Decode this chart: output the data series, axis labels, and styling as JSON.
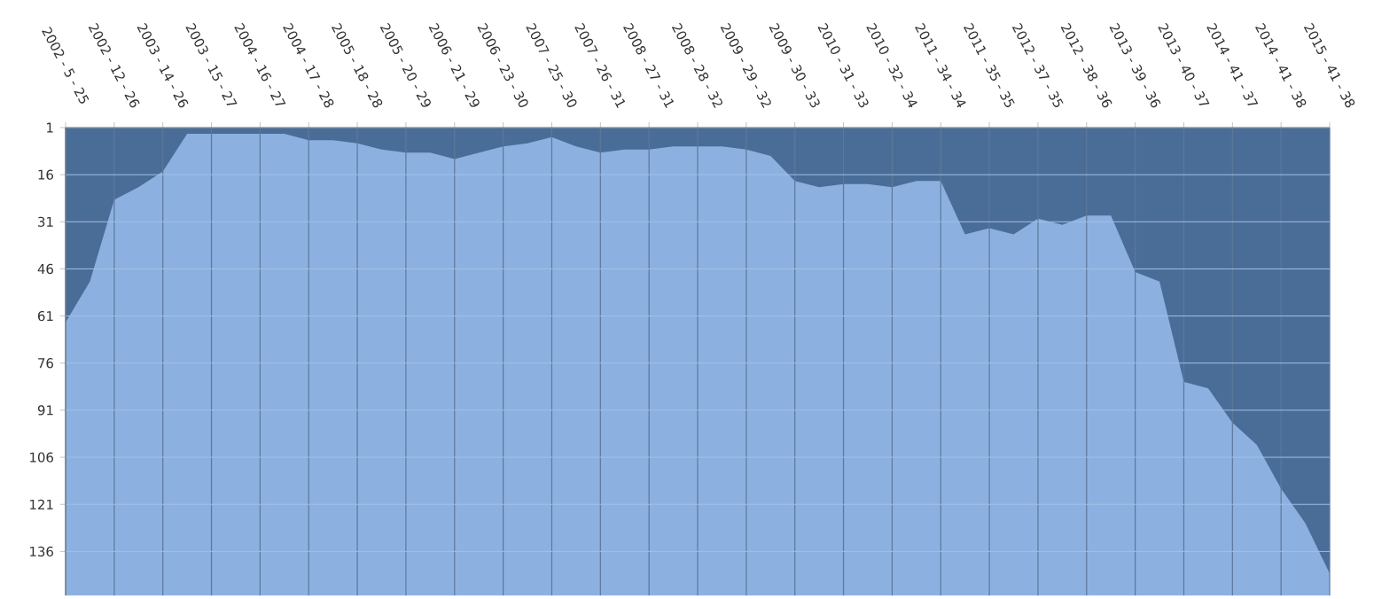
{
  "chart_data": {
    "type": "area",
    "categories": [
      "2002 - 5 - 25",
      null,
      "2002 - 12 - 26",
      null,
      "2003 - 14 - 26",
      null,
      "2003 - 15 - 27",
      null,
      "2004 - 16 - 27",
      null,
      "2004 - 17 - 28",
      null,
      "2005 - 18 - 28",
      null,
      "2005 - 20 - 29",
      null,
      "2006 - 21 - 29",
      null,
      "2006 - 23 - 30",
      null,
      "2007 - 25 - 30",
      null,
      "2007 - 26 - 31",
      null,
      "2008 - 27 - 31",
      null,
      "2008 - 28 - 32",
      null,
      "2009 - 29 - 32",
      null,
      "2009 - 30 - 33",
      null,
      "2010 - 31 - 33",
      null,
      "2010 - 32 - 34",
      null,
      "2011 - 34 - 34",
      null,
      "2011 - 35 - 35",
      null,
      "2012 - 37 - 35",
      null,
      "2012 - 38 - 36",
      null,
      "2013 - 39 - 36",
      null,
      "2013 - 40 - 37",
      null,
      "2014 - 41 - 37",
      null,
      "2014 - 41 - 38",
      null,
      "2015 - 41 - 38"
    ],
    "values": [
      63,
      50,
      24,
      20,
      15,
      3,
      3,
      3,
      3,
      3,
      5,
      5,
      6,
      8,
      9,
      9,
      11,
      9,
      7,
      6,
      4,
      7,
      9,
      8,
      8,
      7,
      7,
      7,
      8,
      10,
      18,
      20,
      19,
      19,
      20,
      18,
      18,
      35,
      33,
      35,
      30,
      32,
      29,
      29,
      47,
      50,
      82,
      84,
      95,
      102,
      116,
      127,
      143
    ],
    "color": "#4a6d98",
    "ylim": [
      150,
      1
    ],
    "yticks": [
      1,
      16,
      31,
      46,
      61,
      76,
      91,
      106,
      121,
      136
    ],
    "grid": true
  }
}
